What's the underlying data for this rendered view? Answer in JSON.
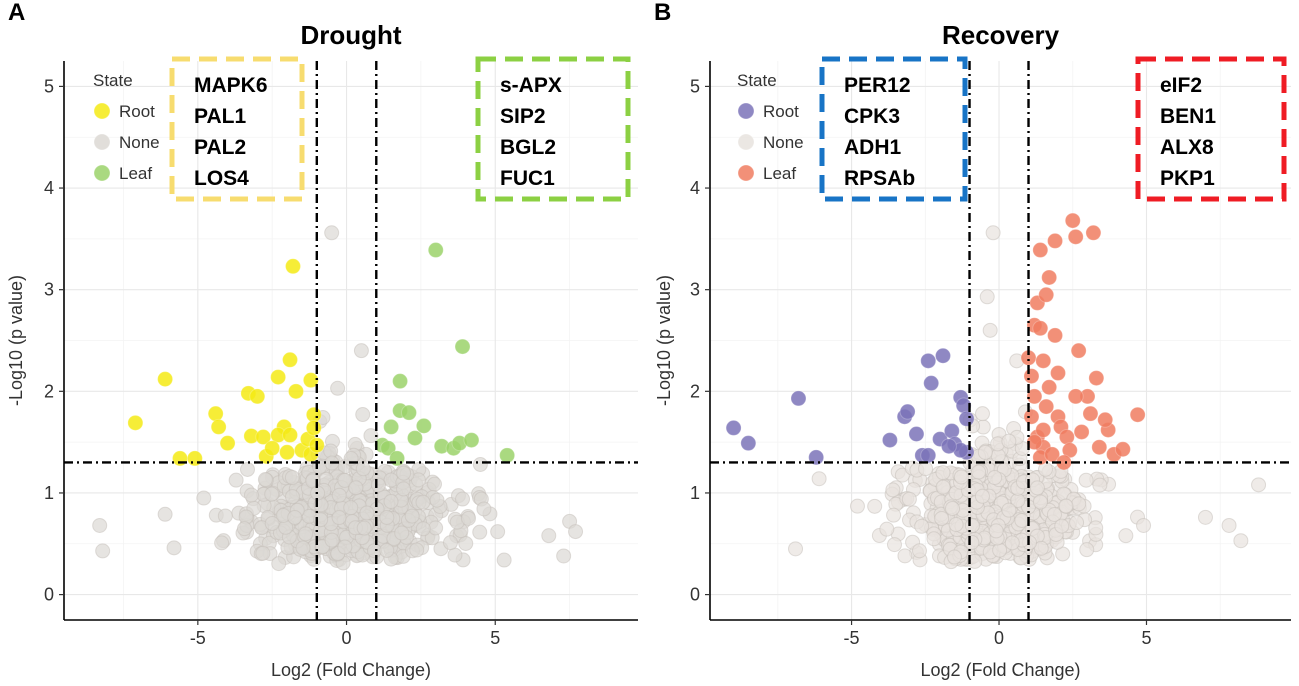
{
  "chart_data": [
    {
      "panel": "A",
      "type": "scatter",
      "title": "Drought",
      "xlabel": "Log2 (Fold Change)",
      "ylabel": "-Log10 (p value)",
      "xlim": [
        -9.5,
        9.8
      ],
      "ylim": [
        -0.25,
        5.25
      ],
      "xticks": [
        -5,
        0,
        5
      ],
      "yticks": [
        0,
        1,
        2,
        3,
        4,
        5
      ],
      "thresholds": {
        "x": [
          -1,
          1
        ],
        "y": 1.3
      },
      "legend": {
        "title": "State",
        "items": [
          {
            "label": "Root",
            "color": "#f5ea14"
          },
          {
            "label": "None",
            "color": "#dcd8d4"
          },
          {
            "label": "Leaf",
            "color": "#9bd26a"
          }
        ]
      },
      "gene_boxes": [
        {
          "genes": [
            "MAPK6",
            "PAL1",
            "PAL2",
            "LOS4"
          ],
          "color": "#f7dc6f"
        },
        {
          "genes": [
            "s-APX",
            "SIP2",
            "BGL2",
            "FUC1"
          ],
          "color": "#8cd043"
        }
      ],
      "series": [
        {
          "name": "Root",
          "points": [
            [
              -7.1,
              1.69
            ],
            [
              -6.1,
              2.12
            ],
            [
              -5.6,
              1.34
            ],
            [
              -5.1,
              1.34
            ],
            [
              -4.4,
              1.78
            ],
            [
              -4.3,
              1.65
            ],
            [
              -4.0,
              1.49
            ],
            [
              -3.3,
              1.98
            ],
            [
              -3.0,
              1.95
            ],
            [
              -3.2,
              1.56
            ],
            [
              -2.8,
              1.55
            ],
            [
              -2.7,
              1.36
            ],
            [
              -2.3,
              2.14
            ],
            [
              -2.1,
              1.65
            ],
            [
              -2.3,
              1.57
            ],
            [
              -1.9,
              1.57
            ],
            [
              -1.8,
              3.23
            ],
            [
              -1.9,
              2.31
            ],
            [
              -1.7,
              2.0
            ],
            [
              -1.5,
              1.42
            ],
            [
              -1.3,
              1.53
            ],
            [
              -1.2,
              1.38
            ],
            [
              -1.1,
              1.77
            ],
            [
              -1.1,
              1.64
            ],
            [
              -1.2,
              2.11
            ],
            [
              -1.0,
              1.47
            ],
            [
              -2.5,
              1.44
            ],
            [
              -2.0,
              1.4
            ]
          ]
        },
        {
          "name": "Leaf",
          "points": [
            [
              1.2,
              1.47
            ],
            [
              1.4,
              1.44
            ],
            [
              1.5,
              1.65
            ],
            [
              1.7,
              1.34
            ],
            [
              1.8,
              1.81
            ],
            [
              1.8,
              2.1
            ],
            [
              2.1,
              1.79
            ],
            [
              2.3,
              1.54
            ],
            [
              2.6,
              1.66
            ],
            [
              3.0,
              3.39
            ],
            [
              3.2,
              1.46
            ],
            [
              3.6,
              1.44
            ],
            [
              3.8,
              1.49
            ],
            [
              3.9,
              2.44
            ],
            [
              4.2,
              1.52
            ],
            [
              5.4,
              1.37
            ]
          ]
        }
      ]
    },
    {
      "panel": "B",
      "type": "scatter",
      "title": "Recovery",
      "xlabel": "Log2 (Fold Change)",
      "ylabel": "-Log10 (p value)",
      "xlim": [
        -9.8,
        9.9
      ],
      "ylim": [
        -0.25,
        5.25
      ],
      "xticks": [
        -5,
        0,
        5
      ],
      "yticks": [
        0,
        1,
        2,
        3,
        4,
        5
      ],
      "thresholds": {
        "x": [
          -1,
          1
        ],
        "y": 1.3
      },
      "legend": {
        "title": "State",
        "items": [
          {
            "label": "Root",
            "color": "#7b73b8"
          },
          {
            "label": "None",
            "color": "#e8e3de"
          },
          {
            "label": "Leaf",
            "color": "#f07d60"
          }
        ]
      },
      "gene_boxes": [
        {
          "genes": [
            "PER12",
            "CPK3",
            "ADH1",
            "RPSAb"
          ],
          "color": "#1874c6"
        },
        {
          "genes": [
            "eIF2",
            "BEN1",
            "ALX8",
            "PKP1"
          ],
          "color": "#ef1c24"
        }
      ],
      "series": [
        {
          "name": "Root",
          "points": [
            [
              -9.0,
              1.64
            ],
            [
              -8.5,
              1.49
            ],
            [
              -6.8,
              1.93
            ],
            [
              -6.2,
              1.35
            ],
            [
              -3.7,
              1.52
            ],
            [
              -3.2,
              1.75
            ],
            [
              -3.1,
              1.8
            ],
            [
              -2.6,
              1.37
            ],
            [
              -2.8,
              1.58
            ],
            [
              -2.4,
              1.37
            ],
            [
              -2.3,
              2.08
            ],
            [
              -2.4,
              2.3
            ],
            [
              -1.9,
              2.35
            ],
            [
              -2.0,
              1.53
            ],
            [
              -1.6,
              1.61
            ],
            [
              -1.3,
              1.94
            ],
            [
              -1.2,
              1.86
            ],
            [
              -1.1,
              1.73
            ],
            [
              -1.5,
              1.48
            ],
            [
              -1.1,
              1.4
            ],
            [
              -1.3,
              1.42
            ],
            [
              -1.7,
              1.46
            ]
          ]
        },
        {
          "name": "Leaf",
          "points": [
            [
              1.0,
              2.33
            ],
            [
              1.2,
              2.65
            ],
            [
              1.4,
              3.39
            ],
            [
              1.4,
              2.62
            ],
            [
              1.3,
              2.87
            ],
            [
              1.1,
              2.15
            ],
            [
              1.2,
              1.95
            ],
            [
              1.1,
              1.75
            ],
            [
              1.3,
              1.55
            ],
            [
              1.5,
              1.45
            ],
            [
              1.6,
              1.85
            ],
            [
              1.7,
              2.04
            ],
            [
              1.6,
              2.95
            ],
            [
              1.7,
              3.12
            ],
            [
              1.9,
              3.48
            ],
            [
              1.9,
              2.55
            ],
            [
              2.0,
              1.75
            ],
            [
              2.1,
              1.65
            ],
            [
              2.3,
              1.55
            ],
            [
              2.4,
              1.42
            ],
            [
              2.5,
              3.68
            ],
            [
              2.6,
              3.52
            ],
            [
              2.7,
              2.4
            ],
            [
              3.0,
              1.95
            ],
            [
              3.1,
              1.78
            ],
            [
              3.2,
              3.56
            ],
            [
              3.3,
              2.13
            ],
            [
              3.4,
              1.45
            ],
            [
              3.7,
              1.62
            ],
            [
              3.9,
              1.38
            ],
            [
              4.2,
              1.43
            ],
            [
              4.7,
              1.77
            ],
            [
              1.4,
              1.35
            ],
            [
              1.5,
              1.62
            ],
            [
              1.8,
              1.38
            ],
            [
              2.2,
              1.3
            ],
            [
              2.8,
              1.6
            ],
            [
              1.2,
              1.5
            ],
            [
              2.0,
              2.18
            ],
            [
              2.6,
              1.95
            ],
            [
              1.5,
              2.3
            ],
            [
              3.6,
              1.72
            ]
          ]
        }
      ]
    }
  ]
}
